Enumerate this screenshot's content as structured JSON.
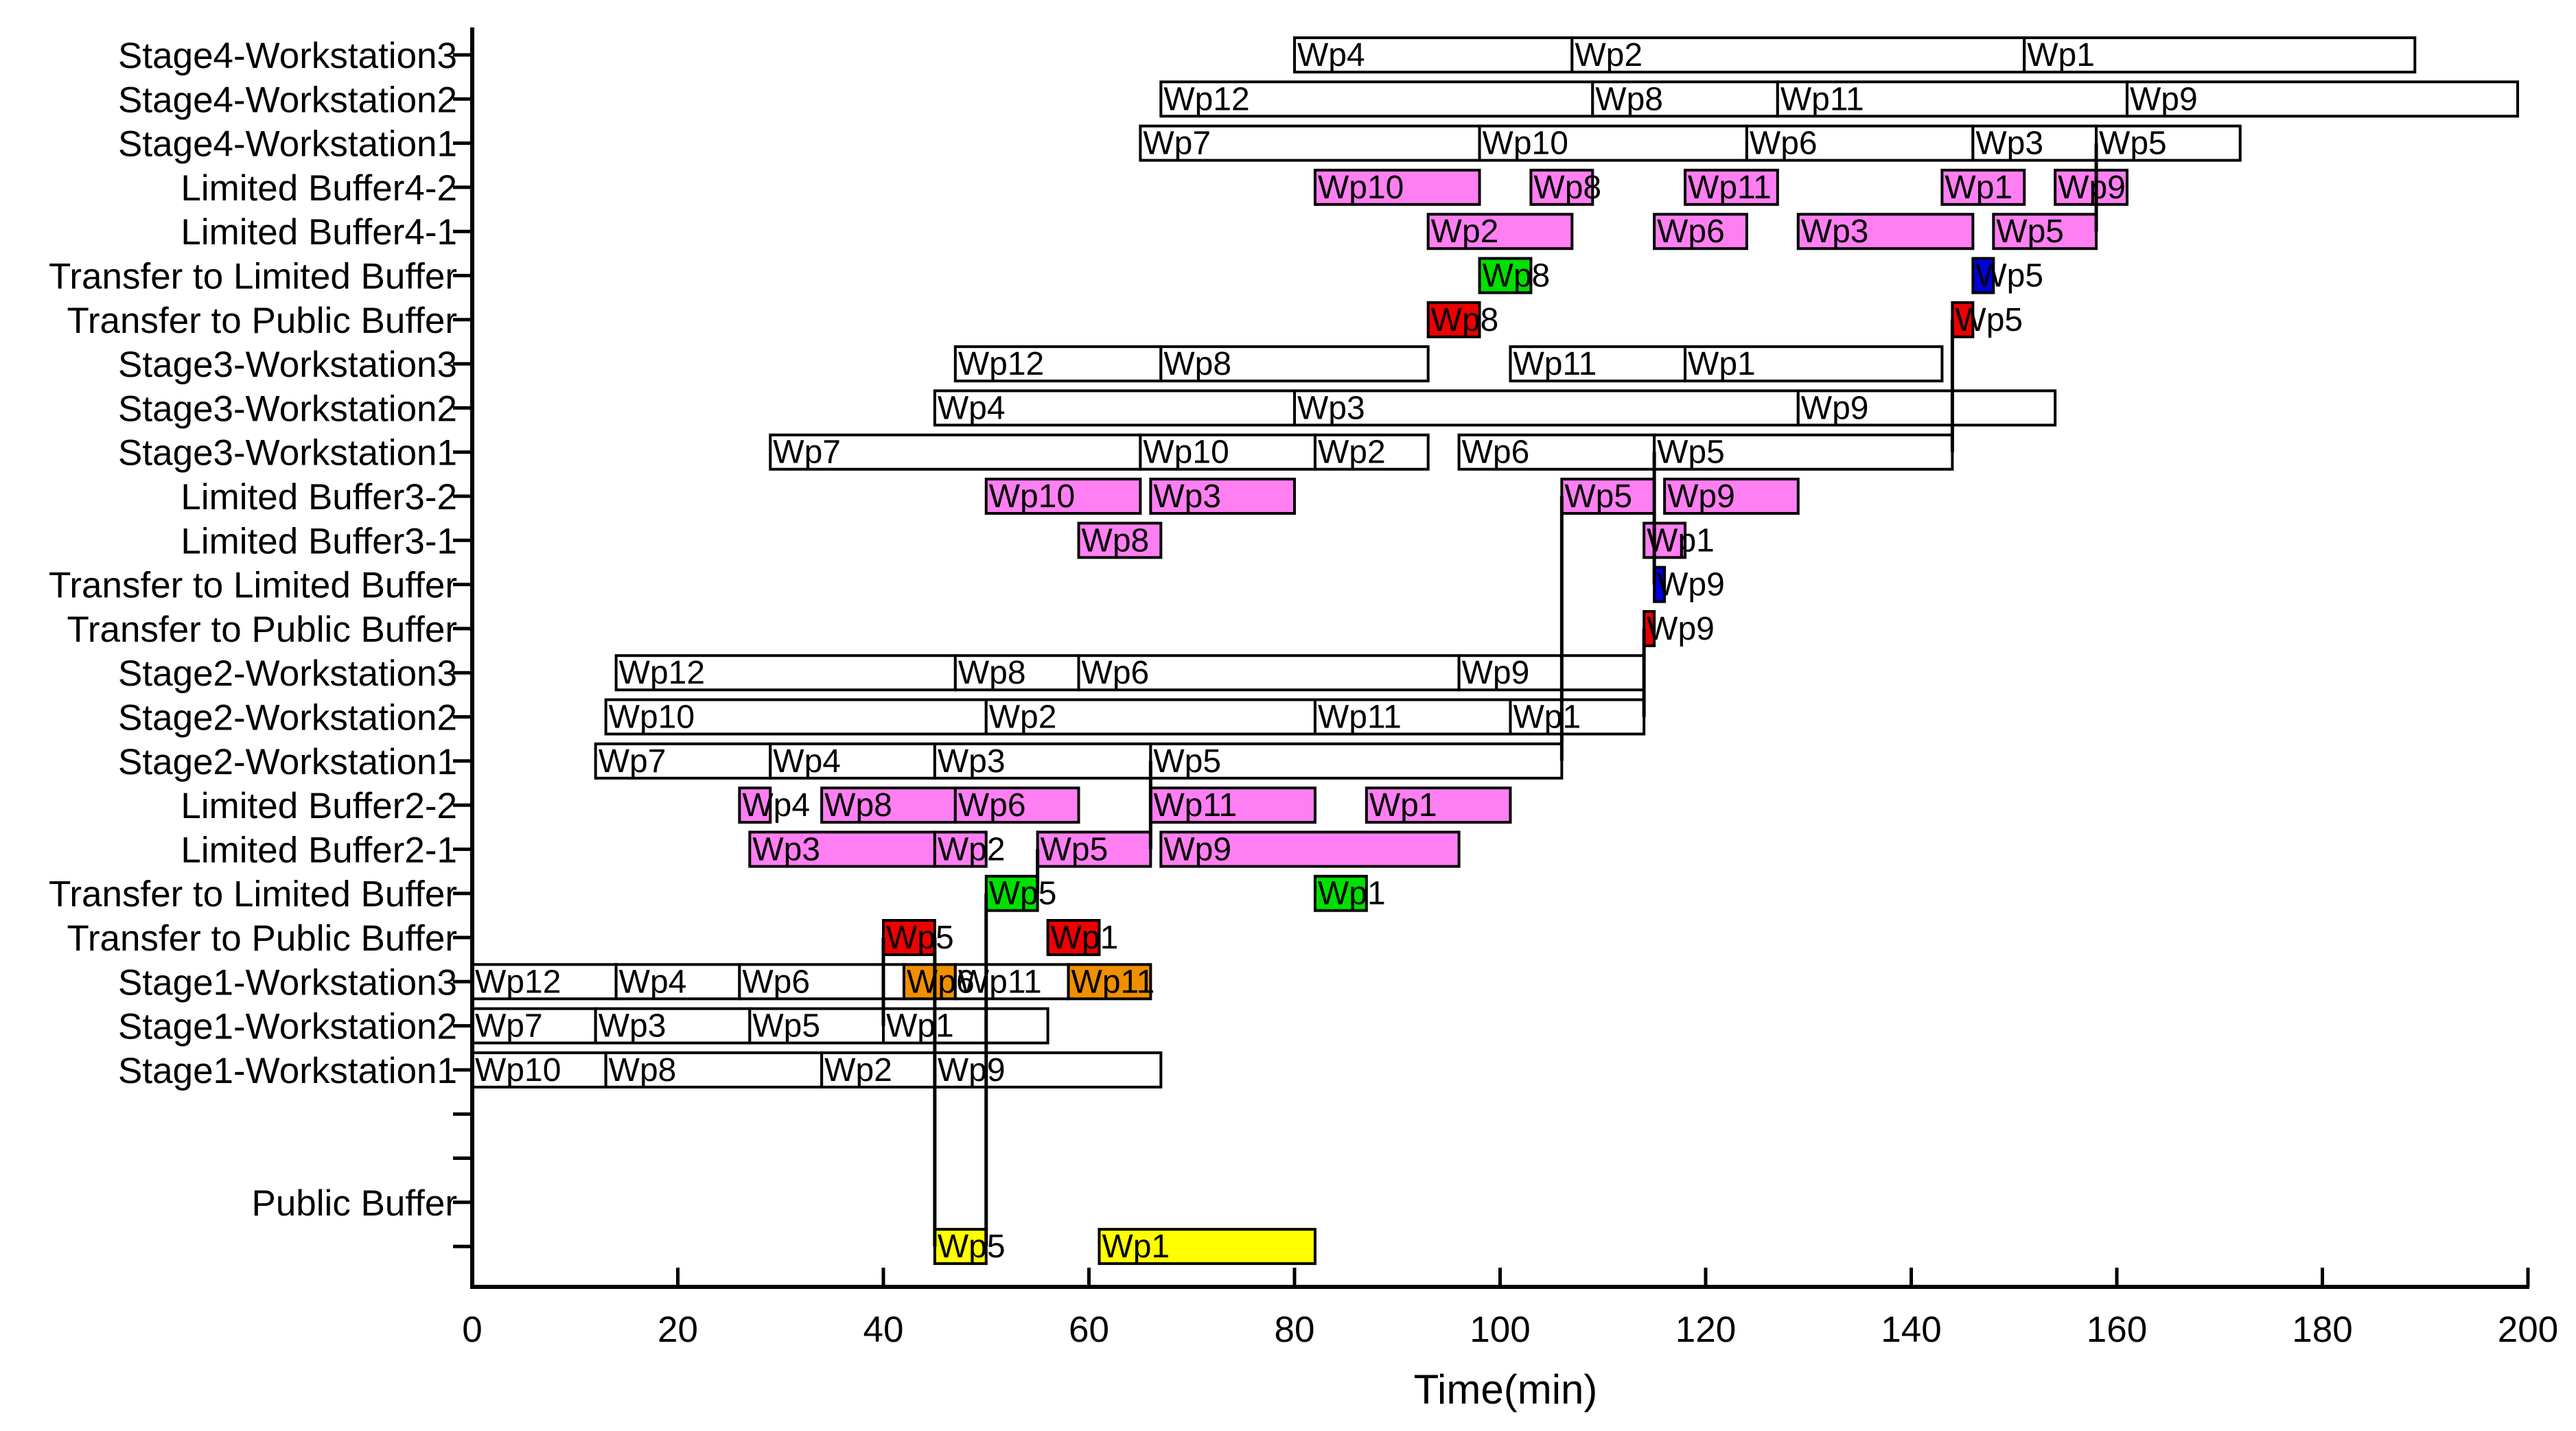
{
  "chart_data": {
    "type": "gantt",
    "xlabel": "Time(min)",
    "xlim": [
      0,
      200
    ],
    "xticks": [
      0,
      20,
      40,
      60,
      80,
      100,
      120,
      140,
      160,
      180,
      200
    ],
    "xtick_labels": [
      "0",
      "20",
      "40",
      "60",
      "80",
      "100",
      "120",
      "140",
      "160",
      "180",
      "200"
    ],
    "colors": {
      "workstation": "#ffffff",
      "limited_buffer": "#ff7ff2",
      "transfer_to_limited": "#00e000",
      "transfer_to_public": "#ee0000",
      "stage3_transfer_limited": "#0000dd",
      "public_buffer": "#ffff00",
      "public_dispatch": "#f09000"
    },
    "rows": [
      {
        "label": "Stage4-Workstation3",
        "bars": [
          {
            "wp": "Wp4",
            "start": 80,
            "end": 107,
            "color": "#ffffff"
          },
          {
            "wp": "Wp2",
            "start": 107,
            "end": 151,
            "color": "#ffffff"
          },
          {
            "wp": "Wp1",
            "start": 151,
            "end": 189,
            "color": "#ffffff"
          }
        ]
      },
      {
        "label": "Stage4-Workstation2",
        "bars": [
          {
            "wp": "Wp12",
            "start": 67,
            "end": 109,
            "color": "#ffffff"
          },
          {
            "wp": "Wp8",
            "start": 109,
            "end": 127,
            "color": "#ffffff"
          },
          {
            "wp": "Wp11",
            "start": 127,
            "end": 161,
            "color": "#ffffff"
          },
          {
            "wp": "Wp9",
            "start": 161,
            "end": 199,
            "color": "#ffffff"
          }
        ]
      },
      {
        "label": "Stage4-Workstation1",
        "bars": [
          {
            "wp": "Wp7",
            "start": 65,
            "end": 98,
            "color": "#ffffff"
          },
          {
            "wp": "Wp10",
            "start": 98,
            "end": 124,
            "color": "#ffffff"
          },
          {
            "wp": "Wp6",
            "start": 124,
            "end": 146,
            "color": "#ffffff"
          },
          {
            "wp": "Wp3",
            "start": 146,
            "end": 158,
            "color": "#ffffff"
          },
          {
            "wp": "Wp5",
            "start": 158,
            "end": 172,
            "color": "#ffffff"
          }
        ]
      },
      {
        "label": "Limited Buffer4-2",
        "bars": [
          {
            "wp": "Wp10",
            "start": 82,
            "end": 98,
            "color": "#ff7ff2"
          },
          {
            "wp": "Wp8",
            "start": 103,
            "end": 109,
            "color": "#ff7ff2"
          },
          {
            "wp": "Wp11",
            "start": 118,
            "end": 127,
            "color": "#ff7ff2"
          },
          {
            "wp": "Wp1",
            "start": 143,
            "end": 151,
            "color": "#ff7ff2"
          },
          {
            "wp": "Wp9",
            "start": 154,
            "end": 161,
            "color": "#ff7ff2"
          }
        ]
      },
      {
        "label": "Limited Buffer4-1",
        "bars": [
          {
            "wp": "Wp2",
            "start": 93,
            "end": 107,
            "color": "#ff7ff2"
          },
          {
            "wp": "Wp6",
            "start": 115,
            "end": 124,
            "color": "#ff7ff2"
          },
          {
            "wp": "Wp3",
            "start": 129,
            "end": 146,
            "color": "#ff7ff2"
          },
          {
            "wp": "Wp5",
            "start": 148,
            "end": 158,
            "color": "#ff7ff2"
          }
        ]
      },
      {
        "label": "Transfer to Limited Buffer",
        "bars": [
          {
            "wp": "Wp8",
            "start": 98,
            "end": 103,
            "color": "#00e000"
          },
          {
            "wp": "Wp5",
            "start": 146,
            "end": 148,
            "color": "#0000dd"
          }
        ]
      },
      {
        "label": "Transfer to Public Buffer",
        "bars": [
          {
            "wp": "Wp8",
            "start": 93,
            "end": 98,
            "color": "#ee0000"
          },
          {
            "wp": "Wp5",
            "start": 144,
            "end": 146,
            "color": "#ee0000"
          }
        ]
      },
      {
        "label": "Stage3-Workstation3",
        "bars": [
          {
            "wp": "Wp12",
            "start": 47,
            "end": 67,
            "color": "#ffffff"
          },
          {
            "wp": "Wp8",
            "start": 67,
            "end": 93,
            "color": "#ffffff"
          },
          {
            "wp": "Wp11",
            "start": 101,
            "end": 118,
            "color": "#ffffff"
          },
          {
            "wp": "Wp1",
            "start": 118,
            "end": 143,
            "color": "#ffffff"
          }
        ]
      },
      {
        "label": "Stage3-Workstation2",
        "bars": [
          {
            "wp": "Wp4",
            "start": 45,
            "end": 80,
            "color": "#ffffff"
          },
          {
            "wp": "Wp3",
            "start": 80,
            "end": 129,
            "color": "#ffffff"
          },
          {
            "wp": "Wp9",
            "start": 129,
            "end": 154,
            "color": "#ffffff"
          }
        ]
      },
      {
        "label": "Stage3-Workstation1",
        "bars": [
          {
            "wp": "Wp7",
            "start": 29,
            "end": 65,
            "color": "#ffffff"
          },
          {
            "wp": "Wp10",
            "start": 65,
            "end": 82,
            "color": "#ffffff"
          },
          {
            "wp": "Wp2",
            "start": 82,
            "end": 93,
            "color": "#ffffff"
          },
          {
            "wp": "Wp6",
            "start": 96,
            "end": 115,
            "color": "#ffffff"
          },
          {
            "wp": "Wp5",
            "start": 115,
            "end": 144,
            "color": "#ffffff"
          }
        ]
      },
      {
        "label": "Limited Buffer3-2",
        "bars": [
          {
            "wp": "Wp10",
            "start": 50,
            "end": 65,
            "color": "#ff7ff2"
          },
          {
            "wp": "Wp3",
            "start": 66,
            "end": 80,
            "color": "#ff7ff2"
          },
          {
            "wp": "Wp5",
            "start": 106,
            "end": 115,
            "color": "#ff7ff2"
          },
          {
            "wp": "Wp9",
            "start": 116,
            "end": 129,
            "color": "#ff7ff2"
          }
        ]
      },
      {
        "label": "Limited Buffer3-1",
        "bars": [
          {
            "wp": "Wp8",
            "start": 59,
            "end": 67,
            "color": "#ff7ff2"
          },
          {
            "wp": "Wp1",
            "start": 114,
            "end": 118,
            "color": "#ff7ff2"
          }
        ]
      },
      {
        "label": "Transfer to Limited Buffer",
        "bars": [
          {
            "wp": "Wp9",
            "start": 115,
            "end": 116,
            "color": "#0000dd"
          }
        ]
      },
      {
        "label": "Transfer to Public Buffer",
        "bars": [
          {
            "wp": "Wp9",
            "start": 114,
            "end": 115,
            "color": "#ee0000"
          }
        ]
      },
      {
        "label": "Stage2-Workstation3",
        "bars": [
          {
            "wp": "Wp12",
            "start": 14,
            "end": 47,
            "color": "#ffffff"
          },
          {
            "wp": "Wp8",
            "start": 47,
            "end": 59,
            "color": "#ffffff"
          },
          {
            "wp": "Wp6",
            "start": 59,
            "end": 96,
            "color": "#ffffff"
          },
          {
            "wp": "Wp9",
            "start": 96,
            "end": 114,
            "color": "#ffffff"
          }
        ]
      },
      {
        "label": "Stage2-Workstation2",
        "bars": [
          {
            "wp": "Wp10",
            "start": 13,
            "end": 50,
            "color": "#ffffff"
          },
          {
            "wp": "Wp2",
            "start": 50,
            "end": 82,
            "color": "#ffffff"
          },
          {
            "wp": "Wp11",
            "start": 82,
            "end": 101,
            "color": "#ffffff"
          },
          {
            "wp": "Wp1",
            "start": 101,
            "end": 114,
            "color": "#ffffff"
          }
        ]
      },
      {
        "label": "Stage2-Workstation1",
        "bars": [
          {
            "wp": "Wp7",
            "start": 12,
            "end": 29,
            "color": "#ffffff"
          },
          {
            "wp": "Wp4",
            "start": 29,
            "end": 45,
            "color": "#ffffff"
          },
          {
            "wp": "Wp3",
            "start": 45,
            "end": 66,
            "color": "#ffffff"
          },
          {
            "wp": "Wp5",
            "start": 66,
            "end": 106,
            "color": "#ffffff"
          }
        ]
      },
      {
        "label": "Limited Buffer2-2",
        "bars": [
          {
            "wp": "Wp4",
            "start": 26,
            "end": 29,
            "color": "#ff7ff2"
          },
          {
            "wp": "Wp8",
            "start": 34,
            "end": 47,
            "color": "#ff7ff2"
          },
          {
            "wp": "Wp6",
            "start": 47,
            "end": 59,
            "color": "#ff7ff2"
          },
          {
            "wp": "Wp11",
            "start": 66,
            "end": 82,
            "color": "#ff7ff2"
          },
          {
            "wp": "Wp1",
            "start": 87,
            "end": 101,
            "color": "#ff7ff2"
          }
        ]
      },
      {
        "label": "Limited Buffer2-1",
        "bars": [
          {
            "wp": "Wp3",
            "start": 27,
            "end": 45,
            "color": "#ff7ff2"
          },
          {
            "wp": "Wp2",
            "start": 45,
            "end": 50,
            "color": "#ff7ff2"
          },
          {
            "wp": "Wp5",
            "start": 55,
            "end": 66,
            "color": "#ff7ff2"
          },
          {
            "wp": "Wp9",
            "start": 67,
            "end": 96,
            "color": "#ff7ff2"
          }
        ]
      },
      {
        "label": "Transfer to Limited Buffer",
        "bars": [
          {
            "wp": "Wp5",
            "start": 50,
            "end": 55,
            "color": "#00e000"
          },
          {
            "wp": "Wp1",
            "start": 82,
            "end": 87,
            "color": "#00e000"
          }
        ]
      },
      {
        "label": "Transfer to Public Buffer",
        "bars": [
          {
            "wp": "Wp5",
            "start": 40,
            "end": 45,
            "color": "#ee0000"
          },
          {
            "wp": "Wp1",
            "start": 56,
            "end": 61,
            "color": "#ee0000"
          }
        ]
      },
      {
        "label": "Stage1-Workstation3",
        "bars": [
          {
            "wp": "Wp12",
            "start": 0,
            "end": 14,
            "color": "#ffffff"
          },
          {
            "wp": "Wp4",
            "start": 14,
            "end": 26,
            "color": "#ffffff"
          },
          {
            "wp": "Wp6",
            "start": 26,
            "end": 42,
            "color": "#ffffff"
          },
          {
            "wp": "Wp6",
            "start": 42,
            "end": 47,
            "color": "#f09000"
          },
          {
            "wp": "Wp11",
            "start": 47,
            "end": 58,
            "color": "#ffffff"
          },
          {
            "wp": "Wp11",
            "start": 58,
            "end": 66,
            "color": "#f09000"
          }
        ]
      },
      {
        "label": "Stage1-Workstation2",
        "bars": [
          {
            "wp": "Wp7",
            "start": 0,
            "end": 12,
            "color": "#ffffff"
          },
          {
            "wp": "Wp3",
            "start": 12,
            "end": 27,
            "color": "#ffffff"
          },
          {
            "wp": "Wp5",
            "start": 27,
            "end": 40,
            "color": "#ffffff"
          },
          {
            "wp": "Wp1",
            "start": 40,
            "end": 56,
            "color": "#ffffff"
          }
        ]
      },
      {
        "label": "Stage1-Workstation1",
        "bars": [
          {
            "wp": "Wp10",
            "start": 0,
            "end": 13,
            "color": "#ffffff"
          },
          {
            "wp": "Wp8",
            "start": 13,
            "end": 34,
            "color": "#ffffff"
          },
          {
            "wp": "Wp2",
            "start": 34,
            "end": 45,
            "color": "#ffffff"
          },
          {
            "wp": "Wp9",
            "start": 45,
            "end": 67,
            "color": "#ffffff"
          }
        ]
      },
      {
        "label": "",
        "bars": []
      },
      {
        "label": "",
        "bars": []
      },
      {
        "label": "Public Buffer",
        "bars": []
      },
      {
        "label": "",
        "bars": [
          {
            "wp": "Wp5",
            "start": 45,
            "end": 50,
            "color": "#ffff00"
          },
          {
            "wp": "Wp1",
            "start": 61,
            "end": 82,
            "color": "#ffff00"
          }
        ]
      }
    ],
    "connectors": [
      {
        "x": 45,
        "from_row": 20,
        "to_row": 27
      },
      {
        "x": 50,
        "from_row": 19,
        "to_row": 27
      },
      {
        "x": 40,
        "from_row": 20,
        "to_row": 22
      },
      {
        "x": 55,
        "from_row": 19,
        "to_row": 18
      },
      {
        "x": 66,
        "from_row": 18,
        "to_row": 16
      },
      {
        "x": 106,
        "from_row": 16,
        "to_row": 10
      },
      {
        "x": 114,
        "from_row": 15,
        "to_row": 13
      },
      {
        "x": 115,
        "from_row": 12,
        "to_row": 9
      },
      {
        "x": 144,
        "from_row": 9,
        "to_row": 6
      },
      {
        "x": 158,
        "from_row": 4,
        "to_row": 2
      }
    ]
  }
}
